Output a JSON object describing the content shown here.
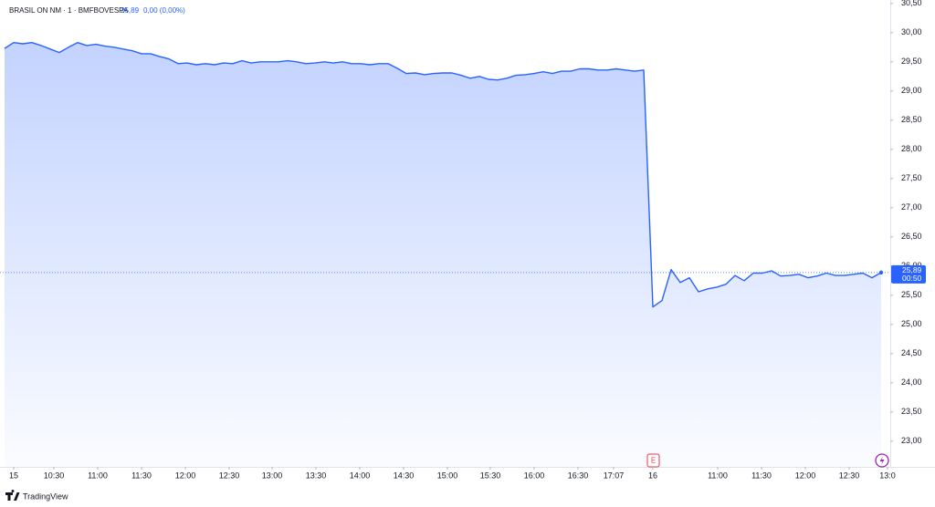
{
  "header": {
    "symbol": "BRASIL ON NM · 1 · BMFBOVESPA",
    "last": "25,89",
    "change": "0,00 (0,00%)"
  },
  "price_tag": {
    "price": "25,89",
    "countdown": "00:50"
  },
  "events": [
    "E"
  ],
  "footer": {
    "brand": "TradingView"
  },
  "chart_data": {
    "type": "area",
    "series": [
      {
        "color": "#2962ff",
        "values": [
          29.73,
          29.83,
          29.81,
          29.83,
          29.78,
          29.72,
          29.66,
          29.75,
          29.83,
          29.78,
          29.8,
          29.77,
          29.75,
          29.72,
          29.69,
          29.64,
          29.64,
          29.59,
          29.55,
          29.47,
          29.48,
          29.45,
          29.47,
          29.45,
          29.48,
          29.47,
          29.52,
          29.48,
          29.5,
          29.5,
          29.5,
          29.52,
          29.5,
          29.47,
          29.48,
          29.5,
          29.48,
          29.5,
          29.47,
          29.47,
          29.45,
          29.47,
          29.47,
          29.39,
          29.3,
          29.31,
          29.28,
          29.3,
          29.31,
          29.31,
          29.27,
          29.22,
          29.25,
          29.2,
          29.19,
          29.22,
          29.27,
          29.28,
          29.3,
          29.33,
          29.3,
          29.34,
          29.34,
          29.38,
          29.38,
          29.36,
          29.36,
          29.38,
          29.36,
          29.34,
          29.36,
          25.3,
          25.41,
          25.94,
          25.72,
          25.8,
          25.56,
          25.61,
          25.64,
          25.69,
          25.84,
          25.75,
          25.88,
          25.88,
          25.92,
          25.83,
          25.84,
          25.86,
          25.8,
          25.83,
          25.88,
          25.84,
          25.84,
          25.86,
          25.88,
          25.8,
          25.89
        ]
      }
    ],
    "xlim": [
      -0.5,
      97
    ],
    "xticks": [
      {
        "value": 1,
        "label": "15"
      },
      {
        "value": 5.4,
        "label": "10:30"
      },
      {
        "value": 10.2,
        "label": "11:00"
      },
      {
        "value": 15,
        "label": "11:30"
      },
      {
        "value": 19.8,
        "label": "12:00"
      },
      {
        "value": 24.6,
        "label": "12:30"
      },
      {
        "value": 29.3,
        "label": "13:00"
      },
      {
        "value": 34.1,
        "label": "13:30"
      },
      {
        "value": 38.9,
        "label": "14:00"
      },
      {
        "value": 43.7,
        "label": "14:30"
      },
      {
        "value": 48.5,
        "label": "15:00"
      },
      {
        "value": 53.2,
        "label": "15:30"
      },
      {
        "value": 58,
        "label": "16:00"
      },
      {
        "value": 62.8,
        "label": "16:30"
      },
      {
        "value": 66.7,
        "label": "17:07"
      },
      {
        "value": 71,
        "label": "16"
      },
      {
        "value": 78.1,
        "label": "11:00"
      },
      {
        "value": 82.9,
        "label": "11:30"
      },
      {
        "value": 87.7,
        "label": "12:00"
      },
      {
        "value": 92.5,
        "label": "12:30"
      },
      {
        "value": 96.7,
        "label": "13:0"
      }
    ],
    "ylim": [
      22.56,
      30.56
    ],
    "yticks": [
      {
        "value": 23,
        "label": "23,00"
      },
      {
        "value": 23.5,
        "label": "23,50"
      },
      {
        "value": 24,
        "label": "24,00"
      },
      {
        "value": 24.5,
        "label": "24,50"
      },
      {
        "value": 25,
        "label": "25,00"
      },
      {
        "value": 25.5,
        "label": "25,50"
      },
      {
        "value": 26,
        "label": "26,00"
      },
      {
        "value": 26.5,
        "label": "26,50"
      },
      {
        "value": 27,
        "label": "27,00"
      },
      {
        "value": 27.5,
        "label": "27,50"
      },
      {
        "value": 28,
        "label": "28,00"
      },
      {
        "value": 28.5,
        "label": "28,50"
      },
      {
        "value": 29,
        "label": "29,00"
      },
      {
        "value": 29.5,
        "label": "29,50"
      },
      {
        "value": 30,
        "label": "30,00"
      },
      {
        "value": 30.5,
        "label": "30,50"
      }
    ]
  }
}
